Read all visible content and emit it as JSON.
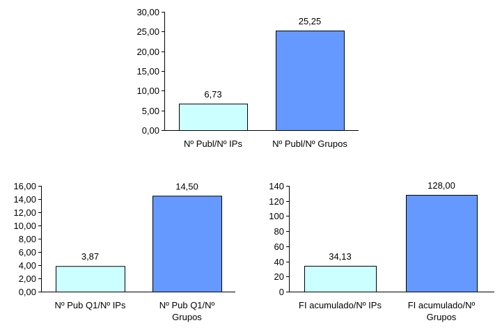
{
  "colors": {
    "bar_light": "#ccffff",
    "bar_blue": "#6699ff",
    "bar_stroke": "#000000",
    "axis": "#000000"
  },
  "chart_data": [
    {
      "type": "bar",
      "categories": [
        [
          "Nº Publ/Nº IPs"
        ],
        [
          "Nº Publ/Nº Grupos"
        ]
      ],
      "values": [
        6.73,
        25.25
      ],
      "value_labels": [
        "6,73",
        "25,25"
      ],
      "bar_colors": [
        "bar_light",
        "bar_blue"
      ],
      "ylim": [
        0,
        30
      ],
      "yticks": [
        0,
        5,
        10,
        15,
        20,
        25,
        30
      ],
      "ytick_labels": [
        "0,00",
        "5,00",
        "10,00",
        "15,00",
        "20,00",
        "25,00",
        "30,00"
      ],
      "grid": false,
      "legend": "none"
    },
    {
      "type": "bar",
      "categories": [
        [
          "Nº Pub Q1/Nº IPs"
        ],
        [
          "Nº Pub Q1/Nº",
          "Grupos"
        ]
      ],
      "values": [
        3.87,
        14.5
      ],
      "value_labels": [
        "3,87",
        "14,50"
      ],
      "bar_colors": [
        "bar_light",
        "bar_blue"
      ],
      "ylim": [
        0,
        16
      ],
      "yticks": [
        0,
        2,
        4,
        6,
        8,
        10,
        12,
        14,
        16
      ],
      "ytick_labels": [
        "0,00",
        "2,00",
        "4,00",
        "6,00",
        "8,00",
        "10,00",
        "12,00",
        "14,00",
        "16,00"
      ],
      "grid": false,
      "legend": "none"
    },
    {
      "type": "bar",
      "categories": [
        [
          "FI acumulado/Nº IPs"
        ],
        [
          "FI acumulado/Nº",
          "Grupos"
        ]
      ],
      "values": [
        34.13,
        128.0
      ],
      "value_labels": [
        "34,13",
        "128,00"
      ],
      "bar_colors": [
        "bar_light",
        "bar_blue"
      ],
      "ylim": [
        0,
        140
      ],
      "yticks": [
        0,
        20,
        40,
        60,
        80,
        100,
        120,
        140
      ],
      "ytick_labels": [
        "0",
        "20",
        "40",
        "60",
        "80",
        "100",
        "120",
        "140"
      ],
      "grid": false,
      "legend": "none"
    }
  ]
}
